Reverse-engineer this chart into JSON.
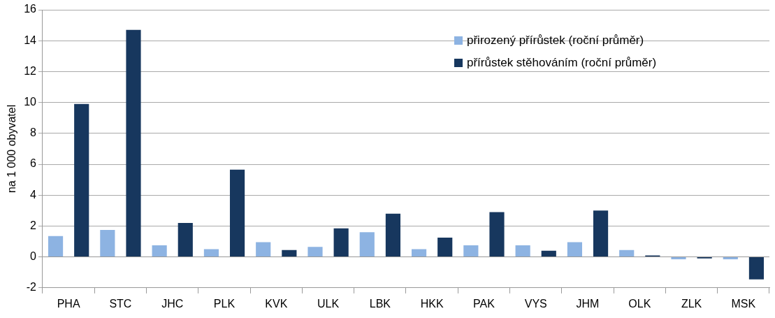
{
  "chart_data": {
    "type": "bar",
    "ylabel": "na 1 000 obyvatel",
    "categories": [
      "PHA",
      "STC",
      "JHC",
      "PLK",
      "KVK",
      "ULK",
      "LBK",
      "HKK",
      "PAK",
      "VYS",
      "JHM",
      "OLK",
      "ZLK",
      "MSK"
    ],
    "series": [
      {
        "name": "přirozený přírůstek (roční průměr)",
        "color": "#8db3e2",
        "values": [
          1.35,
          1.75,
          0.75,
          0.5,
          0.95,
          0.65,
          1.6,
          0.5,
          0.75,
          0.75,
          0.95,
          0.45,
          -0.15,
          -0.15
        ]
      },
      {
        "name": "přírůstek stěhováním (roční průměr)",
        "color": "#17375e",
        "values": [
          9.9,
          14.7,
          2.2,
          5.65,
          0.45,
          1.85,
          2.8,
          1.25,
          2.9,
          0.4,
          3.0,
          0.1,
          -0.1,
          -1.45
        ]
      }
    ],
    "ylim": [
      -2,
      16
    ],
    "yticks": [
      -2,
      0,
      2,
      4,
      6,
      8,
      10,
      12,
      14,
      16
    ],
    "grid": "y",
    "legend": "top right"
  }
}
